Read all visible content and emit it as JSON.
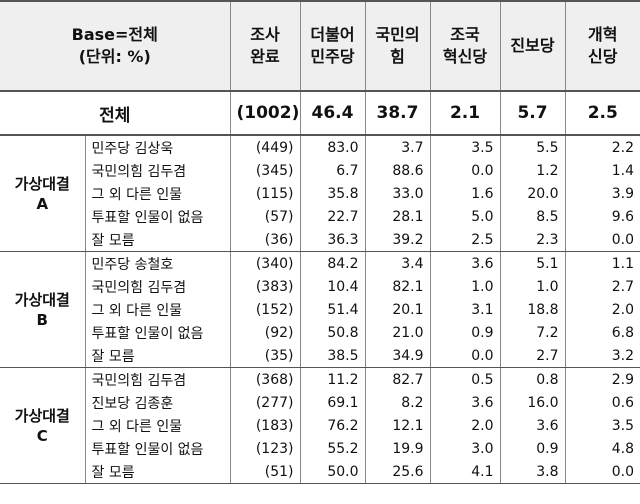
{
  "header": {
    "cells": [
      [
        "Base=전체",
        "(단위: %)"
      ],
      [
        "조사",
        "완료"
      ],
      [
        "더불어",
        "민주당"
      ],
      [
        "국민의",
        "힘"
      ],
      [
        "조국",
        "혁신당"
      ],
      [
        "진보당"
      ],
      [
        "개혁",
        "신당"
      ]
    ]
  },
  "total": [
    "전체",
    "(1002)",
    "46.4",
    "38.7",
    "2.1",
    "5.7",
    "2.5"
  ],
  "groups": [
    {
      "label": [
        "가상대결",
        "A"
      ],
      "rows": [
        [
          "민주당 김상욱",
          "(449)",
          "83.0",
          "3.7",
          "3.5",
          "5.5",
          "2.2"
        ],
        [
          "국민의힘 김두겸",
          "(345)",
          "6.7",
          "88.6",
          "0.0",
          "1.2",
          "1.4"
        ],
        [
          "그 외 다른 인물",
          "(115)",
          "35.8",
          "33.0",
          "1.6",
          "20.0",
          "3.9"
        ],
        [
          "투표할 인물이 없음",
          "(57)",
          "22.7",
          "28.1",
          "5.0",
          "8.5",
          "9.6"
        ],
        [
          "잘 모름",
          "(36)",
          "36.3",
          "39.2",
          "2.5",
          "2.3",
          "0.0"
        ]
      ]
    },
    {
      "label": [
        "가상대결",
        "B"
      ],
      "rows": [
        [
          "민주당 송철호",
          "(340)",
          "84.2",
          "3.4",
          "3.6",
          "5.1",
          "1.1"
        ],
        [
          "국민의힘 김두겸",
          "(383)",
          "10.4",
          "82.1",
          "1.0",
          "1.0",
          "2.7"
        ],
        [
          "그 외 다른 인물",
          "(152)",
          "51.4",
          "20.1",
          "3.1",
          "18.8",
          "2.0"
        ],
        [
          "투표할 인물이 없음",
          "(92)",
          "50.8",
          "21.0",
          "0.9",
          "7.2",
          "6.8"
        ],
        [
          "잘 모름",
          "(35)",
          "38.5",
          "34.9",
          "0.0",
          "2.7",
          "3.2"
        ]
      ]
    },
    {
      "label": [
        "가상대결",
        "C"
      ],
      "rows": [
        [
          "국민의힘 김두겸",
          "(368)",
          "11.2",
          "82.7",
          "0.5",
          "0.8",
          "2.9"
        ],
        [
          "진보당 김종훈",
          "(277)",
          "69.1",
          "8.2",
          "3.6",
          "16.0",
          "0.6"
        ],
        [
          "그 외 다른 인물",
          "(183)",
          "76.2",
          "12.1",
          "2.0",
          "3.6",
          "3.5"
        ],
        [
          "투표할 인물이 없음",
          "(123)",
          "55.2",
          "19.9",
          "3.0",
          "0.9",
          "4.8"
        ],
        [
          "잘 모름",
          "(51)",
          "50.0",
          "25.6",
          "4.1",
          "3.8",
          "0.0"
        ]
      ]
    }
  ]
}
